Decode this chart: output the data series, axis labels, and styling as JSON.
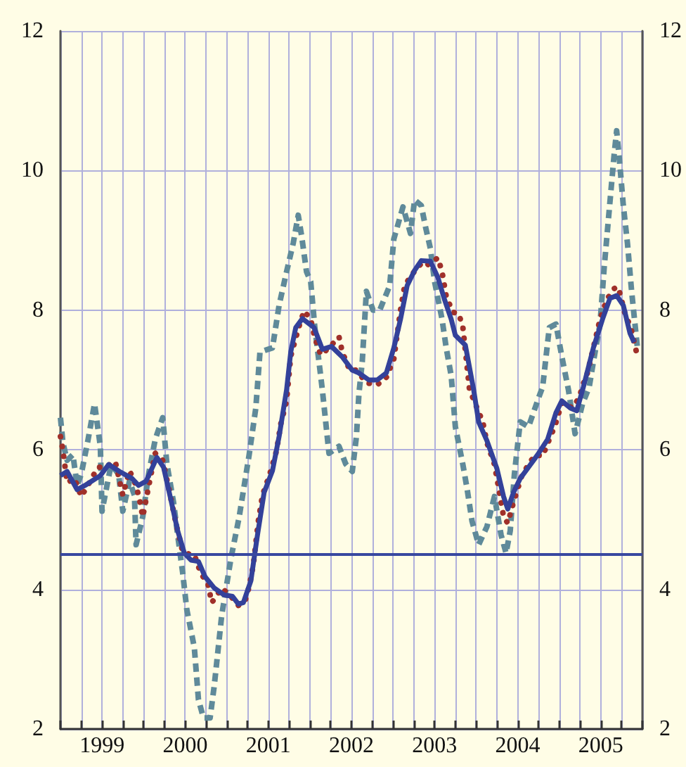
{
  "chart_data": {
    "type": "line",
    "xlim": [
      1999,
      2006
    ],
    "xticks": [
      {
        "value": 1999,
        "label": null
      },
      {
        "value": 1999.25,
        "label": null
      },
      {
        "value": 1999.5,
        "label": "1999"
      },
      {
        "value": 1999.75,
        "label": null
      },
      {
        "value": 2000,
        "label": null
      },
      {
        "value": 2000.25,
        "label": null
      },
      {
        "value": 2000.5,
        "label": "2000"
      },
      {
        "value": 2000.75,
        "label": null
      },
      {
        "value": 2001,
        "label": null
      },
      {
        "value": 2001.25,
        "label": null
      },
      {
        "value": 2001.5,
        "label": "2001"
      },
      {
        "value": 2001.75,
        "label": null
      },
      {
        "value": 2002,
        "label": null
      },
      {
        "value": 2002.25,
        "label": null
      },
      {
        "value": 2002.5,
        "label": "2002"
      },
      {
        "value": 2002.75,
        "label": null
      },
      {
        "value": 2003,
        "label": null
      },
      {
        "value": 2003.25,
        "label": null
      },
      {
        "value": 2003.5,
        "label": "2003"
      },
      {
        "value": 2003.75,
        "label": null
      },
      {
        "value": 2004,
        "label": null
      },
      {
        "value": 2004.25,
        "label": null
      },
      {
        "value": 2004.5,
        "label": "2004"
      },
      {
        "value": 2004.75,
        "label": null
      },
      {
        "value": 2005,
        "label": null
      },
      {
        "value": 2005.25,
        "label": null
      },
      {
        "value": 2005.5,
        "label": "2005"
      },
      {
        "value": 2005.75,
        "label": null
      },
      {
        "value": 2006,
        "label": null
      }
    ],
    "ylim": [
      2,
      12
    ],
    "yticks": [
      2,
      4,
      6,
      8,
      10,
      12
    ],
    "y2lim": [
      2,
      12
    ],
    "y2ticks": [
      2,
      4,
      6,
      8,
      10,
      12
    ],
    "grid": true,
    "ref_lines": [
      {
        "axis": "y",
        "value": 4.5,
        "color": "#3848a0",
        "line_style": "solid"
      }
    ],
    "series": [
      {
        "color": "#5f8a9a",
        "line_style": "dashed",
        "x": [
          1999,
          1999.03,
          1999.08,
          1999.15,
          1999.2,
          1999.25,
          1999.33,
          1999.41,
          1999.48,
          1999.5,
          1999.56,
          1999.61,
          1999.7,
          1999.75,
          1999.83,
          1999.89,
          1999.91,
          1999.99,
          2000.06,
          2000.14,
          2000.23,
          2000.28,
          2000.36,
          2000.41,
          2000.47,
          2000.52,
          2000.61,
          2000.66,
          2000.72,
          2000.8,
          2000.85,
          2000.94,
          2001.05,
          2001.15,
          2001.27,
          2001.35,
          2001.4,
          2001.55,
          2001.63,
          2001.72,
          2001.8,
          2001.86,
          2001.9,
          2001.96,
          2002.01,
          2002.06,
          2002.13,
          2002.15,
          2002.23,
          2002.35,
          2002.43,
          2002.51,
          2002.56,
          2002.59,
          2002.63,
          2002.68,
          2002.76,
          2002.84,
          2002.96,
          2003.01,
          2003.12,
          2003.21,
          2003.26,
          2003.34,
          2003.39,
          2003.45,
          2003.5,
          2003.59,
          2003.64,
          2003.7,
          2003.75,
          2003.84,
          2003.89,
          2003.95,
          2004.03,
          2004.13,
          2004.22,
          2004.3,
          2004.36,
          2004.41,
          2004.46,
          2004.53,
          2004.63,
          2004.75,
          2004.8,
          2004.88,
          2004.96,
          2005.03,
          2005.11,
          2005.19,
          2005.28,
          2005.36,
          2005.41,
          2005.49,
          2005.54,
          2005.61,
          2005.66,
          2005.69,
          2005.72,
          2005.77,
          2005.82,
          2005.87,
          2005.94
        ],
        "values": [
          6.46,
          6.1,
          5.85,
          5.93,
          5.49,
          5.65,
          6.13,
          6.66,
          6.05,
          5.12,
          5.49,
          5.79,
          5.65,
          5.12,
          5.55,
          5.35,
          4.64,
          5.04,
          5.65,
          6.15,
          6.46,
          5.8,
          5.25,
          4.78,
          4.24,
          3.71,
          3.17,
          2.42,
          2.16,
          2.16,
          2.62,
          3.63,
          4.44,
          5.04,
          5.93,
          6.6,
          7.4,
          7.46,
          8.07,
          8.55,
          8.96,
          9.36,
          9.07,
          8.55,
          8.41,
          7.75,
          7.06,
          6.86,
          5.95,
          6.05,
          5.8,
          5.69,
          6.19,
          6.8,
          7.26,
          8.27,
          8,
          8,
          8.35,
          9.02,
          9.48,
          9.1,
          9.58,
          9.5,
          9.2,
          8.88,
          8.41,
          7.87,
          7.46,
          7.06,
          6.33,
          5.79,
          5.45,
          4.98,
          4.64,
          4.9,
          5.33,
          4.78,
          4.52,
          4.84,
          5.65,
          6.4,
          6.33,
          6.74,
          6.9,
          7.75,
          7.8,
          7.34,
          6.86,
          6.23,
          6.66,
          6.9,
          7.26,
          7.8,
          8.61,
          9.56,
          10.23,
          10.57,
          10.2,
          9.5,
          8.96,
          8.27,
          7.46
        ]
      },
      {
        "color": "#a0302a",
        "line_style": "dotted",
        "x": [
          1999,
          1999.03,
          1999.08,
          1999.17,
          1999.25,
          1999.33,
          1999.45,
          1999.53,
          1999.66,
          1999.75,
          1999.83,
          1999.89,
          1999.94,
          1999.99,
          2000.06,
          2000.14,
          2000.23,
          2000.31,
          2000.39,
          2000.47,
          2000.56,
          2000.61,
          2000.69,
          2000.77,
          2000.82,
          2000.94,
          2001.05,
          2001.14,
          2001.22,
          2001.27,
          2001.32,
          2001.38,
          2001.43,
          2001.52,
          2001.6,
          2001.65,
          2001.72,
          2001.77,
          2001.88,
          2001.93,
          2002.01,
          2002.06,
          2002.13,
          2002.23,
          2002.35,
          2002.39,
          2002.48,
          2002.56,
          2002.68,
          2002.81,
          2002.92,
          2003.01,
          2003.09,
          2003.14,
          2003.22,
          2003.34,
          2003.39,
          2003.54,
          2003.59,
          2003.64,
          2003.72,
          2003.79,
          2003.84,
          2003.92,
          2004.08,
          2004.13,
          2004.22,
          2004.28,
          2004.33,
          2004.38,
          2004.45,
          2004.55,
          2004.63,
          2004.71,
          2004.8,
          2004.86,
          2004.95,
          2005.03,
          2005.16,
          2005.24,
          2005.29,
          2005.33,
          2005.41,
          2005.49,
          2005.57,
          2005.66,
          2005.71,
          2005.79,
          2005.86,
          2005.94
        ],
        "values": [
          6.19,
          5.99,
          5.53,
          5.59,
          5.33,
          5.49,
          5.75,
          5.75,
          5.83,
          5.35,
          5.7,
          5.55,
          5.35,
          5.04,
          5.47,
          5.95,
          5.85,
          5.41,
          4.94,
          4.54,
          4.5,
          4.5,
          4.22,
          4.1,
          3.81,
          4.02,
          3.9,
          3.77,
          3.83,
          4.04,
          4.35,
          4.98,
          5.35,
          5.66,
          5.99,
          6.37,
          6.7,
          7.34,
          7.81,
          7.99,
          7.87,
          7.6,
          7.36,
          7.46,
          7.62,
          7.4,
          7.14,
          7.14,
          6.96,
          6.93,
          7.04,
          7.3,
          8,
          8.35,
          8.5,
          8.67,
          8.63,
          8.75,
          8.55,
          8.2,
          7.97,
          7.95,
          7.76,
          6.86,
          6.4,
          6.1,
          5.79,
          5.39,
          5.04,
          4.95,
          5.25,
          5.63,
          5.79,
          5.93,
          5.91,
          6.09,
          6.35,
          6.67,
          6.6,
          6.75,
          6.95,
          7.06,
          7.46,
          7.87,
          8.15,
          8.31,
          8.33,
          7.95,
          7.75,
          7.34
        ]
      },
      {
        "color": "#33419a",
        "line_style": "solid",
        "x": [
          1999,
          1999.08,
          1999.2,
          1999.31,
          1999.48,
          1999.58,
          1999.71,
          1999.86,
          1999.94,
          2000.03,
          2000.16,
          2000.24,
          2000.32,
          2000.41,
          2000.49,
          2000.57,
          2000.66,
          2000.74,
          2000.85,
          2000.97,
          2001.07,
          2001.14,
          2001.2,
          2001.29,
          2001.37,
          2001.45,
          2001.55,
          2001.63,
          2001.72,
          2001.77,
          2001.83,
          2001.91,
          2002.05,
          2002.15,
          2002.26,
          2002.39,
          2002.51,
          2002.59,
          2002.71,
          2002.81,
          2002.92,
          2003.01,
          2003.09,
          2003.17,
          2003.26,
          2003.34,
          2003.45,
          2003.54,
          2003.62,
          2003.7,
          2003.75,
          2003.87,
          2003.97,
          2004.03,
          2004.13,
          2004.25,
          2004.33,
          2004.38,
          2004.45,
          2004.53,
          2004.63,
          2004.74,
          2004.86,
          2004.96,
          2005.03,
          2005.13,
          2005.21,
          2005.29,
          2005.41,
          2005.52,
          2005.61,
          2005.69,
          2005.77,
          2005.85,
          2005.9
        ],
        "values": [
          5.63,
          5.69,
          5.43,
          5.5,
          5.63,
          5.79,
          5.69,
          5.59,
          5.49,
          5.55,
          5.89,
          5.75,
          5.33,
          4.84,
          4.52,
          4.42,
          4.4,
          4.18,
          4.02,
          3.92,
          3.9,
          3.79,
          3.81,
          4.12,
          4.78,
          5.39,
          5.7,
          6.19,
          6.86,
          7.4,
          7.75,
          7.88,
          7.75,
          7.44,
          7.48,
          7.33,
          7.14,
          7.1,
          7,
          7,
          7.1,
          7.46,
          7.87,
          8.35,
          8.57,
          8.71,
          8.7,
          8.47,
          8.15,
          7.87,
          7.64,
          7.5,
          6.86,
          6.4,
          6.13,
          5.73,
          5.33,
          5.15,
          5.39,
          5.59,
          5.75,
          5.93,
          6.15,
          6.53,
          6.7,
          6.6,
          6.56,
          6.9,
          7.46,
          7.87,
          8.17,
          8.21,
          8.07,
          7.67,
          7.54
        ]
      }
    ]
  }
}
